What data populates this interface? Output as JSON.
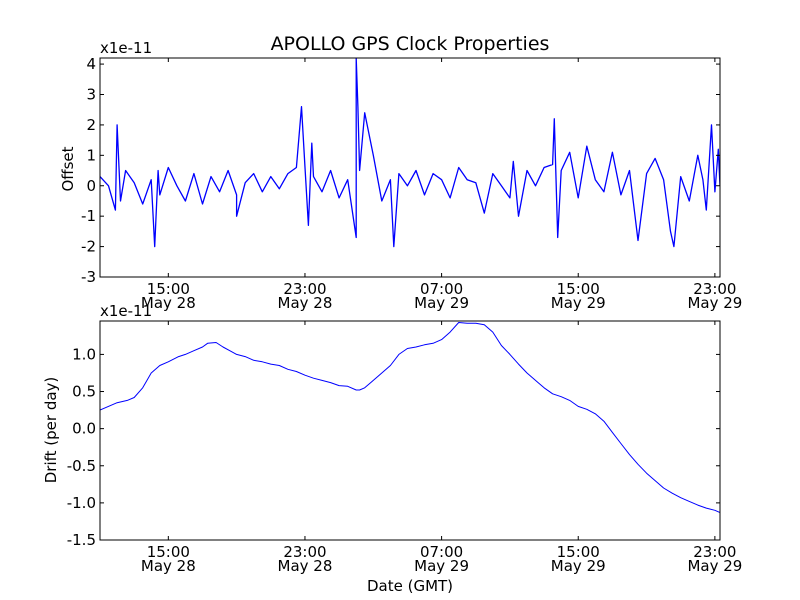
{
  "figure": {
    "title": "APOLLO GPS Clock Properties",
    "xlabel": "Date (GMT)"
  },
  "chart_data": [
    {
      "type": "line",
      "title": "APOLLO GPS Clock Properties",
      "ylabel": "Offset",
      "scale_label": "x1e-11",
      "xlabel": "",
      "x_unit": "hours since 11:00 GMT May 28",
      "xlim": [
        0,
        36.3
      ],
      "ylim": [
        -3,
        4.2
      ],
      "xticks": [
        {
          "x": 4,
          "time": "15:00",
          "date": "May 28"
        },
        {
          "x": 12,
          "time": "23:00",
          "date": "May 28"
        },
        {
          "x": 20,
          "time": "07:00",
          "date": "May 29"
        },
        {
          "x": 28,
          "time": "15:00",
          "date": "May 29"
        },
        {
          "x": 36,
          "time": "23:00",
          "date": "May 29"
        }
      ],
      "yticks": [
        {
          "value": -3,
          "label": "-3"
        },
        {
          "value": -2,
          "label": "-2"
        },
        {
          "value": -1,
          "label": "-1"
        },
        {
          "value": 0,
          "label": "0"
        },
        {
          "value": 1,
          "label": "1"
        },
        {
          "value": 2,
          "label": "2"
        },
        {
          "value": 3,
          "label": "3"
        },
        {
          "value": 4,
          "label": "4"
        }
      ],
      "color": "#0000ff",
      "series": [
        {
          "name": "Offset",
          "x": [
            0,
            0.5,
            0.9,
            1,
            1.2,
            1.5,
            2,
            2.5,
            3,
            3.2,
            3.4,
            3.5,
            4,
            4.5,
            5,
            5.5,
            6,
            6.5,
            7,
            7.5,
            8,
            8,
            8.5,
            9,
            9.5,
            10,
            10.5,
            11,
            11.5,
            11.8,
            12,
            12.2,
            12.4,
            12.5,
            13,
            13.5,
            14,
            14.5,
            15,
            15,
            15.1,
            15.2,
            15.5,
            16,
            16.5,
            17,
            17.2,
            17.5,
            18,
            18.5,
            19,
            19.5,
            20,
            20.5,
            21,
            21.5,
            22,
            22.5,
            23,
            23.5,
            24,
            24.2,
            24.5,
            25,
            25.5,
            26,
            26.5,
            26.6,
            26.8,
            27,
            27.5,
            28,
            28.5,
            29,
            29.5,
            30,
            30.5,
            31,
            31.5,
            32,
            32.5,
            33,
            33.4,
            33.6,
            34,
            34.5,
            35,
            35.3,
            35.5,
            35.8,
            36,
            36.2,
            36.3
          ],
          "y": [
            0.3,
            0,
            -0.8,
            2,
            -0.5,
            0.5,
            0.1,
            -0.6,
            0.2,
            -2,
            0.5,
            -0.3,
            0.6,
            0,
            -0.5,
            0.4,
            -0.6,
            0.3,
            -0.2,
            0.5,
            -0.3,
            -1,
            0.1,
            0.4,
            -0.2,
            0.3,
            -0.1,
            0.4,
            0.6,
            2.6,
            0.6,
            -1.3,
            1.4,
            0.3,
            -0.2,
            0.5,
            -0.4,
            0.2,
            -1.7,
            4.2,
            2.6,
            0.5,
            2.4,
            1,
            -0.5,
            0.2,
            -2,
            0.4,
            0,
            0.5,
            -0.3,
            0.4,
            0.2,
            -0.4,
            0.6,
            0.2,
            0.1,
            -0.9,
            0.4,
            0,
            -0.4,
            0.8,
            -1,
            0.5,
            0,
            0.6,
            0.7,
            2.2,
            -1.7,
            0.5,
            1.1,
            -0.4,
            1.3,
            0.2,
            -0.2,
            1.1,
            -0.3,
            0.5,
            -1.8,
            0.4,
            0.9,
            0.2,
            -1.5,
            -2,
            0.3,
            -0.5,
            1,
            0.2,
            -0.8,
            2,
            -0.2,
            1.2,
            0
          ]
        }
      ]
    },
    {
      "type": "line",
      "ylabel": "Drift (per day)",
      "scale_label": "x1e-11",
      "xlabel": "Date (GMT)",
      "x_unit": "hours since 11:00 GMT May 28",
      "xlim": [
        0,
        36.3
      ],
      "ylim": [
        -1.5,
        1.45
      ],
      "xticks": [
        {
          "x": 4,
          "time": "15:00",
          "date": "May 28"
        },
        {
          "x": 12,
          "time": "23:00",
          "date": "May 28"
        },
        {
          "x": 20,
          "time": "07:00",
          "date": "May 29"
        },
        {
          "x": 28,
          "time": "15:00",
          "date": "May 29"
        },
        {
          "x": 36,
          "time": "23:00",
          "date": "May 29"
        }
      ],
      "yticks": [
        {
          "value": -1.5,
          "label": "-1.5"
        },
        {
          "value": -1,
          "label": "-1.0"
        },
        {
          "value": -0.5,
          "label": "-0.5"
        },
        {
          "value": 0,
          "label": "0.0"
        },
        {
          "value": 0.5,
          "label": "0.5"
        },
        {
          "value": 1,
          "label": "1.0"
        }
      ],
      "color": "#0000ff",
      "series": [
        {
          "name": "Drift",
          "x": [
            0,
            1,
            1.6,
            2,
            2.5,
            3,
            3.5,
            4,
            4.6,
            5,
            5.5,
            6,
            6.3,
            6.8,
            7.2,
            7.6,
            8,
            8.5,
            9,
            9.5,
            10,
            10.5,
            11,
            11.5,
            12,
            12.5,
            13,
            13.5,
            14,
            14.5,
            15,
            15.2,
            15.5,
            16,
            16.5,
            17,
            17.5,
            18,
            18.5,
            19,
            19.5,
            20,
            20.5,
            21,
            21.5,
            22,
            22.5,
            23,
            23.5,
            24,
            24.5,
            25,
            25.5,
            26,
            26.5,
            27,
            27.5,
            28,
            28.5,
            29,
            29.5,
            30,
            30.5,
            31,
            31.5,
            32,
            32.5,
            33,
            33.5,
            34,
            34.5,
            35,
            35.5,
            36,
            36.3
          ],
          "y": [
            0.25,
            0.35,
            0.38,
            0.42,
            0.55,
            0.75,
            0.85,
            0.9,
            0.97,
            1.0,
            1.05,
            1.1,
            1.15,
            1.16,
            1.1,
            1.05,
            1.0,
            0.97,
            0.92,
            0.9,
            0.87,
            0.85,
            0.8,
            0.77,
            0.72,
            0.68,
            0.65,
            0.62,
            0.58,
            0.57,
            0.52,
            0.52,
            0.55,
            0.65,
            0.75,
            0.85,
            1.0,
            1.08,
            1.1,
            1.13,
            1.15,
            1.2,
            1.3,
            1.43,
            1.42,
            1.42,
            1.4,
            1.3,
            1.12,
            1.0,
            0.87,
            0.75,
            0.65,
            0.55,
            0.47,
            0.43,
            0.38,
            0.3,
            0.26,
            0.2,
            0.1,
            -0.05,
            -0.2,
            -0.35,
            -0.48,
            -0.6,
            -0.7,
            -0.8,
            -0.87,
            -0.93,
            -0.98,
            -1.03,
            -1.07,
            -1.1,
            -1.13
          ]
        }
      ]
    }
  ]
}
